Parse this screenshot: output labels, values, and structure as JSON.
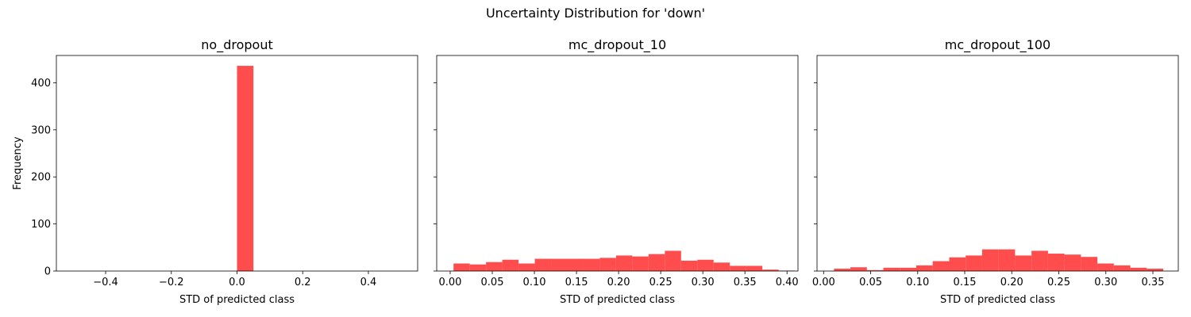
{
  "figure": {
    "suptitle": "Uncertainty Distribution for 'down'",
    "bar_color": "#ff4d4d",
    "shared_y": true
  },
  "chart_data": [
    {
      "type": "bar",
      "title": "no_dropout",
      "xlabel": "STD of predicted class",
      "ylabel": "Frequency",
      "xlim": [
        -0.55,
        0.55
      ],
      "ylim": [
        0,
        458
      ],
      "xticks": [
        -0.4,
        -0.2,
        0.0,
        0.2,
        0.4
      ],
      "xtick_labels": [
        "−0.4",
        "−0.2",
        "0.0",
        "0.2",
        "0.4"
      ],
      "yticks": [
        0,
        100,
        200,
        300,
        400
      ],
      "ytick_labels": [
        "0",
        "100",
        "200",
        "300",
        "400"
      ],
      "bins": [
        {
          "x0": 0.0,
          "x1": 0.05,
          "count": 436
        }
      ]
    },
    {
      "type": "bar",
      "title": "mc_dropout_10",
      "xlabel": "STD of predicted class",
      "ylabel": "",
      "xlim": [
        -0.016,
        0.413
      ],
      "ylim": [
        0,
        458
      ],
      "xticks": [
        0.0,
        0.05,
        0.1,
        0.15,
        0.2,
        0.25,
        0.3,
        0.35,
        0.4
      ],
      "xtick_labels": [
        "0.00",
        "0.05",
        "0.10",
        "0.15",
        "0.20",
        "0.25",
        "0.30",
        "0.35",
        "0.40"
      ],
      "yticks": [
        0,
        100,
        200,
        300,
        400
      ],
      "ytick_labels": [
        "",
        "",
        "",
        "",
        ""
      ],
      "bin_start": 0.004,
      "bin_width": 0.0193,
      "counts": [
        16,
        14,
        19,
        24,
        16,
        26,
        26,
        26,
        26,
        28,
        33,
        31,
        36,
        43,
        22,
        24,
        18,
        11,
        11,
        3,
        1
      ]
    },
    {
      "type": "bar",
      "title": "mc_dropout_100",
      "xlabel": "STD of predicted class",
      "ylabel": "",
      "xlim": [
        -0.007,
        0.377
      ],
      "ylim": [
        0,
        458
      ],
      "xticks": [
        0.0,
        0.05,
        0.1,
        0.15,
        0.2,
        0.25,
        0.3,
        0.35
      ],
      "xtick_labels": [
        "0.00",
        "0.05",
        "0.10",
        "0.15",
        "0.20",
        "0.25",
        "0.30",
        "0.35"
      ],
      "yticks": [
        0,
        100,
        200,
        300,
        400
      ],
      "ytick_labels": [
        "",
        "",
        "",
        "",
        ""
      ],
      "bin_start": 0.011,
      "bin_width": 0.0175,
      "counts": [
        5,
        8,
        2,
        7,
        7,
        12,
        21,
        29,
        33,
        46,
        46,
        33,
        43,
        37,
        35,
        30,
        16,
        12,
        7,
        5
      ]
    }
  ]
}
